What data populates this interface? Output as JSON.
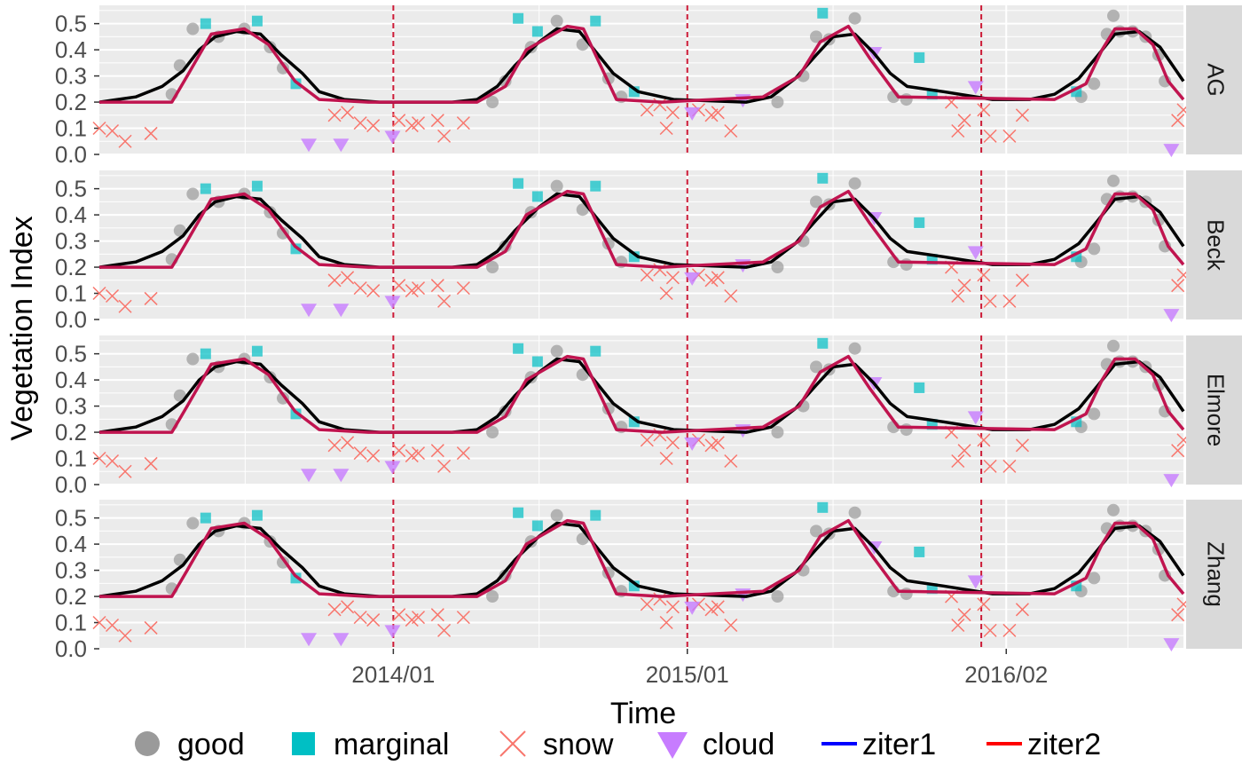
{
  "chart_data": {
    "type": "scatter",
    "title": "",
    "xlabel": "Time",
    "ylabel": "Vegetation Index",
    "ylim": [
      0,
      0.57
    ],
    "yticks": [
      0.0,
      0.1,
      0.2,
      0.3,
      0.4,
      0.5
    ],
    "ytick_labels": [
      "0.0",
      "0.1",
      "0.2",
      "0.3",
      "0.4",
      "0.5"
    ],
    "xlim": [
      "2013-01-01",
      "2016-09-08"
    ],
    "xticks": [
      {
        "date": "2014-01-01",
        "label": "2014/01"
      },
      {
        "date": "2015-01-01",
        "label": "2015/01"
      },
      {
        "date": "2016-02-01",
        "label": "2016/02"
      }
    ],
    "vlines": [
      "2014-01-01",
      "2015-01-01",
      "2016-01-01"
    ],
    "vline_color": "#cc1a36",
    "grid": true,
    "legend_position": "bottom",
    "legend": [
      {
        "label": "good",
        "symbol": "circle",
        "color": "#9a9a9a"
      },
      {
        "label": "marginal",
        "symbol": "square",
        "color": "#00bfc4"
      },
      {
        "label": "snow",
        "symbol": "cross",
        "color": "#f8766d"
      },
      {
        "label": "cloud",
        "symbol": "triangle-down",
        "color": "#c77cff"
      },
      {
        "label": "ziter1",
        "symbol": "line",
        "color": "#0000ff"
      },
      {
        "label": "ziter2",
        "symbol": "line",
        "color": "#ff0000"
      }
    ],
    "colors": {
      "good": "#9a9a9a",
      "marginal": "#00bfc4",
      "snow": "#f8766d",
      "cloud": "#c77cff",
      "fit_black": "#000000",
      "fit_crimson": "#c0144f"
    },
    "facets": [
      "AG",
      "Beck",
      "Elmore",
      "Zhang"
    ],
    "points": {
      "good": [
        [
          "2013-04-01",
          0.23
        ],
        [
          "2013-04-11",
          0.34
        ],
        [
          "2013-04-27",
          0.48
        ],
        [
          "2013-05-29",
          0.45
        ],
        [
          "2013-06-30",
          0.48
        ],
        [
          "2013-08-01",
          0.41
        ],
        [
          "2013-08-17",
          0.33
        ],
        [
          "2014-05-04",
          0.2
        ],
        [
          "2014-05-20",
          0.28
        ],
        [
          "2014-06-21",
          0.41
        ],
        [
          "2014-07-23",
          0.51
        ],
        [
          "2014-08-24",
          0.42
        ],
        [
          "2014-09-25",
          0.29
        ],
        [
          "2014-10-11",
          0.22
        ],
        [
          "2015-04-23",
          0.2
        ],
        [
          "2015-05-25",
          0.3
        ],
        [
          "2015-06-10",
          0.45
        ],
        [
          "2015-06-26",
          0.44
        ],
        [
          "2015-07-28",
          0.52
        ],
        [
          "2015-09-14",
          0.22
        ],
        [
          "2015-09-30",
          0.21
        ],
        [
          "2016-05-04",
          0.22
        ],
        [
          "2016-05-20",
          0.27
        ],
        [
          "2016-06-05",
          0.46
        ],
        [
          "2016-06-13",
          0.53
        ],
        [
          "2016-06-21",
          0.47
        ],
        [
          "2016-07-07",
          0.47
        ],
        [
          "2016-07-23",
          0.45
        ],
        [
          "2016-08-08",
          0.38
        ],
        [
          "2016-08-16",
          0.28
        ]
      ],
      "marginal": [
        [
          "2013-05-13",
          0.5
        ],
        [
          "2013-07-16",
          0.51
        ],
        [
          "2013-09-02",
          0.27
        ],
        [
          "2014-06-05",
          0.52
        ],
        [
          "2014-06-29",
          0.47
        ],
        [
          "2014-09-09",
          0.51
        ],
        [
          "2014-10-27",
          0.24
        ],
        [
          "2015-06-18",
          0.54
        ],
        [
          "2015-10-16",
          0.37
        ],
        [
          "2015-11-01",
          0.23
        ],
        [
          "2016-04-28",
          0.24
        ]
      ],
      "snow": [
        [
          "2013-01-01",
          0.1
        ],
        [
          "2013-01-17",
          0.09
        ],
        [
          "2013-02-02",
          0.05
        ],
        [
          "2013-03-06",
          0.08
        ],
        [
          "2013-10-20",
          0.15
        ],
        [
          "2013-11-05",
          0.16
        ],
        [
          "2013-11-21",
          0.12
        ],
        [
          "2013-12-07",
          0.11
        ],
        [
          "2014-01-08",
          0.13
        ],
        [
          "2014-01-24",
          0.11
        ],
        [
          "2014-02-01",
          0.12
        ],
        [
          "2014-02-25",
          0.13
        ],
        [
          "2014-03-05",
          0.07
        ],
        [
          "2014-03-29",
          0.12
        ],
        [
          "2014-11-12",
          0.17
        ],
        [
          "2014-11-28",
          0.19
        ],
        [
          "2014-12-06",
          0.1
        ],
        [
          "2014-12-14",
          0.16
        ],
        [
          "2015-01-15",
          0.17
        ],
        [
          "2015-01-31",
          0.15
        ],
        [
          "2015-02-08",
          0.16
        ],
        [
          "2015-02-24",
          0.09
        ],
        [
          "2015-11-25",
          0.2
        ],
        [
          "2015-12-03",
          0.09
        ],
        [
          "2015-12-11",
          0.13
        ],
        [
          "2016-01-04",
          0.17
        ],
        [
          "2016-01-12",
          0.07
        ],
        [
          "2016-02-05",
          0.07
        ],
        [
          "2016-02-21",
          0.15
        ],
        [
          "2016-09-01",
          0.13
        ],
        [
          "2016-09-08",
          0.17
        ]
      ],
      "cloud": [
        [
          "2013-09-18",
          0.04
        ],
        [
          "2013-10-28",
          0.04
        ],
        [
          "2013-12-31",
          0.07
        ],
        [
          "2015-01-07",
          0.16
        ],
        [
          "2015-03-11",
          0.21
        ],
        [
          "2015-08-21",
          0.39
        ],
        [
          "2015-12-25",
          0.26
        ],
        [
          "2016-08-24",
          0.02
        ]
      ]
    },
    "series": [
      {
        "style": "black",
        "dates": [
          "2013-01-01",
          "2013-02-15",
          "2013-03-20",
          "2013-04-15",
          "2013-05-05",
          "2013-05-25",
          "2013-06-20",
          "2013-07-20",
          "2013-08-15",
          "2013-09-10",
          "2013-10-01",
          "2013-11-01",
          "2013-12-15",
          "2014-03-15",
          "2014-04-15",
          "2014-05-10",
          "2014-06-01",
          "2014-07-01",
          "2014-07-23",
          "2014-08-20",
          "2014-09-10",
          "2014-10-01",
          "2014-11-01",
          "2014-12-15",
          "2015-03-15",
          "2015-04-15",
          "2015-05-15",
          "2015-06-10",
          "2015-07-01",
          "2015-07-28",
          "2015-08-20",
          "2015-09-10",
          "2015-10-01",
          "2015-11-15",
          "2016-01-15",
          "2016-03-01",
          "2016-04-01",
          "2016-05-01",
          "2016-05-25",
          "2016-06-15",
          "2016-07-15",
          "2016-08-10",
          "2016-09-08"
        ],
        "values": [
          0.2,
          0.22,
          0.26,
          0.32,
          0.4,
          0.45,
          0.47,
          0.46,
          0.38,
          0.31,
          0.24,
          0.21,
          0.2,
          0.2,
          0.21,
          0.26,
          0.34,
          0.43,
          0.48,
          0.47,
          0.39,
          0.31,
          0.24,
          0.21,
          0.2,
          0.22,
          0.29,
          0.38,
          0.45,
          0.46,
          0.39,
          0.31,
          0.26,
          0.24,
          0.21,
          0.21,
          0.23,
          0.29,
          0.38,
          0.46,
          0.47,
          0.41,
          0.28
        ]
      },
      {
        "style": "crimson",
        "dates": [
          "2013-01-01",
          "2013-04-01",
          "2013-04-20",
          "2013-05-20",
          "2013-06-30",
          "2013-07-30",
          "2013-09-01",
          "2013-10-01",
          "2013-12-01",
          "2014-04-15",
          "2014-05-20",
          "2014-06-15",
          "2014-08-05",
          "2014-08-25",
          "2014-10-05",
          "2014-12-01",
          "2015-04-05",
          "2015-05-20",
          "2015-06-15",
          "2015-07-20",
          "2015-08-15",
          "2015-09-20",
          "2016-04-01",
          "2016-05-10",
          "2016-05-30",
          "2016-06-15",
          "2016-07-10",
          "2016-08-01",
          "2016-08-20",
          "2016-09-08"
        ],
        "values": [
          0.2,
          0.2,
          0.3,
          0.46,
          0.48,
          0.42,
          0.28,
          0.21,
          0.2,
          0.2,
          0.26,
          0.4,
          0.49,
          0.48,
          0.21,
          0.2,
          0.22,
          0.3,
          0.43,
          0.49,
          0.37,
          0.22,
          0.21,
          0.27,
          0.4,
          0.48,
          0.48,
          0.42,
          0.28,
          0.21
        ]
      }
    ]
  }
}
